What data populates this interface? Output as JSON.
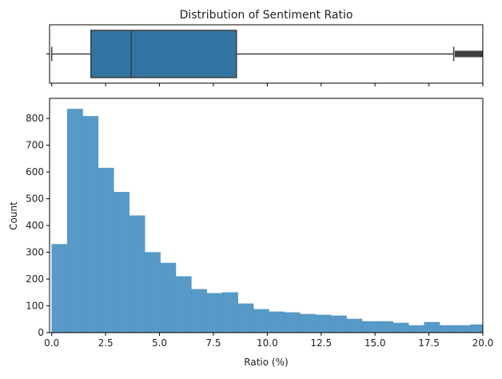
{
  "chart_data": [
    {
      "type": "box",
      "title": "Distribution of Sentiment Ratio",
      "orientation": "horizontal",
      "xlim": [
        -0.1,
        20
      ],
      "min_whisker": 0.0,
      "q1": 1.82,
      "median": 3.69,
      "q3": 8.57,
      "max_whisker": 18.65,
      "outlier_range": [
        18.7,
        20.0
      ],
      "color": "#3274a1",
      "line_color": "#3f3f3f"
    },
    {
      "type": "histogram",
      "xlabel": "Ratio (%)",
      "ylabel": "Count",
      "xlim": [
        -0.1,
        20
      ],
      "ylim": [
        0,
        875
      ],
      "bin_start": 0.0,
      "bin_width": 0.72,
      "values": [
        330,
        835,
        808,
        615,
        525,
        437,
        300,
        260,
        210,
        162,
        147,
        150,
        108,
        87,
        78,
        75,
        69,
        66,
        63,
        51,
        42,
        42,
        36,
        27,
        39,
        27,
        27,
        30
      ],
      "xticks": [
        "0.0",
        "2.5",
        "5.0",
        "7.5",
        "10.0",
        "12.5",
        "15.0",
        "17.5",
        "20.0"
      ],
      "yticks": [
        "0",
        "100",
        "200",
        "300",
        "400",
        "500",
        "600",
        "700",
        "800"
      ],
      "color": "#5799c7",
      "grid": false
    }
  ]
}
